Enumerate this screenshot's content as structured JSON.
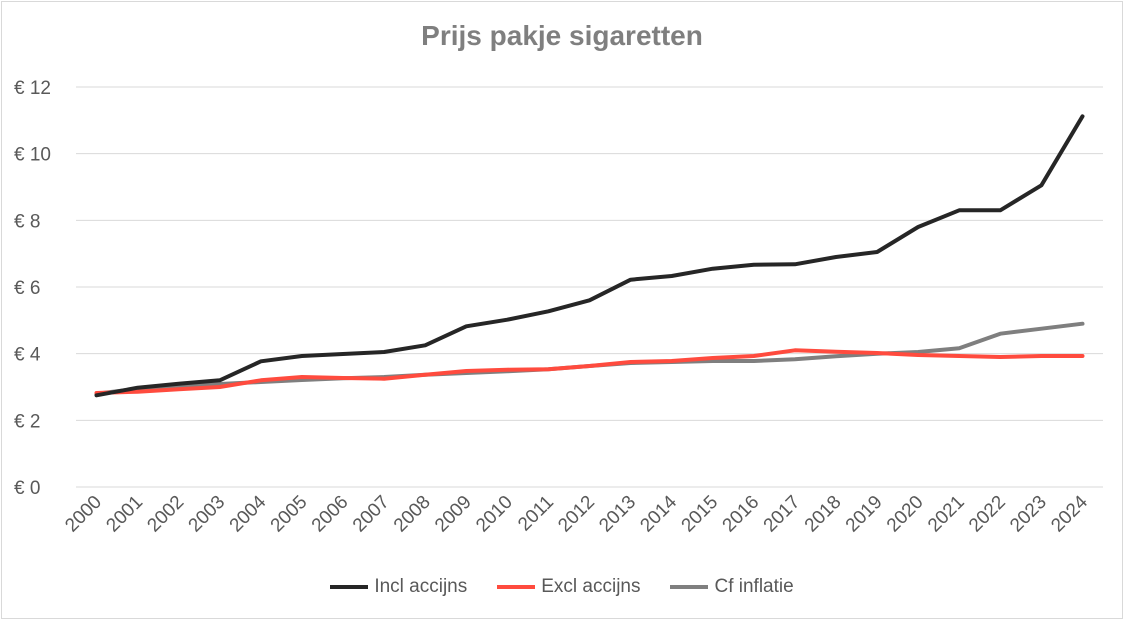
{
  "chart_data": {
    "type": "line",
    "title": "Prijs pakje sigaretten",
    "x": [
      "2000",
      "2001",
      "2002",
      "2003",
      "2004",
      "2005",
      "2006",
      "2007",
      "2008",
      "2009",
      "2010",
      "2011",
      "2012",
      "2013",
      "2014",
      "2015",
      "2016",
      "2017",
      "2018",
      "2019",
      "2020",
      "2021",
      "2022",
      "2023",
      "2024"
    ],
    "ylim": [
      0,
      12
    ],
    "yticks": [
      0,
      2,
      4,
      6,
      8,
      10,
      12
    ],
    "ytick_labels": [
      "€ 0",
      "€ 2",
      "€ 4",
      "€ 6",
      "€ 8",
      "€ 10",
      "€ 12"
    ],
    "grid": true,
    "legend_position": "bottom",
    "series": [
      {
        "name": "Incl accijns",
        "color": "#262626",
        "values": [
          2.75,
          2.98,
          3.1,
          3.2,
          3.77,
          3.93,
          3.99,
          4.05,
          4.25,
          4.82,
          5.02,
          5.27,
          5.6,
          6.22,
          6.33,
          6.55,
          6.67,
          6.68,
          6.9,
          7.05,
          7.8,
          8.3,
          8.3,
          9.05,
          11.12
        ]
      },
      {
        "name": "Excl accijns",
        "color": "#ff4b3e",
        "values": [
          2.82,
          2.86,
          2.93,
          3.0,
          3.2,
          3.3,
          3.27,
          3.25,
          3.37,
          3.48,
          3.52,
          3.53,
          3.63,
          3.75,
          3.78,
          3.87,
          3.93,
          4.1,
          4.06,
          4.02,
          3.96,
          3.93,
          3.9,
          3.93,
          3.93
        ]
      },
      {
        "name": "Cf inflatie",
        "color": "#7f7f7f",
        "values": [
          2.8,
          2.95,
          3.02,
          3.09,
          3.15,
          3.21,
          3.26,
          3.3,
          3.37,
          3.42,
          3.47,
          3.53,
          3.63,
          3.72,
          3.75,
          3.78,
          3.78,
          3.83,
          3.92,
          4.0,
          4.05,
          4.16,
          4.6,
          4.75,
          4.9
        ]
      }
    ]
  }
}
